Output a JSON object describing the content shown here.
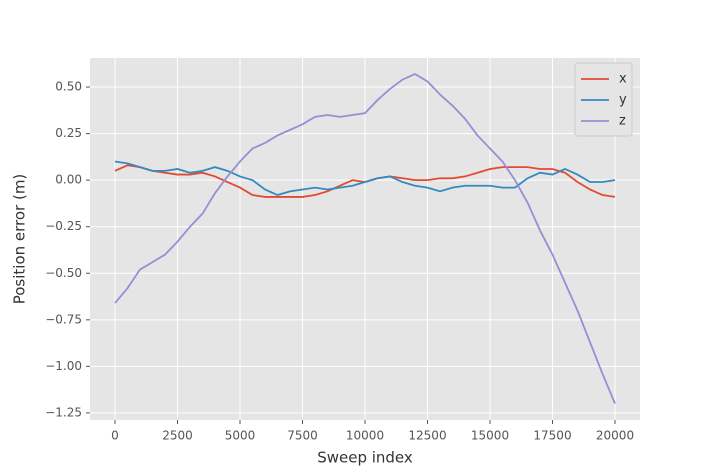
{
  "chart_data": {
    "type": "line",
    "xlabel": "Sweep index",
    "ylabel": "Position error (m)",
    "x": [
      0,
      500,
      1000,
      1500,
      2000,
      2500,
      3000,
      3500,
      4000,
      4500,
      5000,
      5500,
      6000,
      6500,
      7000,
      7500,
      8000,
      8500,
      9000,
      9500,
      10000,
      10500,
      11000,
      11500,
      12000,
      12500,
      13000,
      13500,
      14000,
      14500,
      15000,
      15500,
      16000,
      16500,
      17000,
      17500,
      18000,
      18500,
      19000,
      19500,
      20000
    ],
    "series": [
      {
        "name": "x",
        "color": "#E24A33",
        "values": [
          0.05,
          0.08,
          0.07,
          0.05,
          0.04,
          0.03,
          0.03,
          0.04,
          0.02,
          -0.01,
          -0.04,
          -0.08,
          -0.09,
          -0.09,
          -0.09,
          -0.09,
          -0.08,
          -0.06,
          -0.03,
          0.0,
          -0.01,
          0.01,
          0.02,
          0.01,
          0.0,
          0.0,
          0.01,
          0.01,
          0.02,
          0.04,
          0.06,
          0.07,
          0.07,
          0.07,
          0.06,
          0.06,
          0.04,
          -0.01,
          -0.05,
          -0.08,
          -0.09
        ]
      },
      {
        "name": "y",
        "color": "#348ABD",
        "values": [
          0.1,
          0.09,
          0.07,
          0.05,
          0.05,
          0.06,
          0.04,
          0.05,
          0.07,
          0.05,
          0.02,
          0.0,
          -0.05,
          -0.08,
          -0.06,
          -0.05,
          -0.04,
          -0.05,
          -0.04,
          -0.03,
          -0.01,
          0.01,
          0.02,
          -0.01,
          -0.03,
          -0.04,
          -0.06,
          -0.04,
          -0.03,
          -0.03,
          -0.03,
          -0.04,
          -0.04,
          0.01,
          0.04,
          0.03,
          0.06,
          0.03,
          -0.01,
          -0.01,
          0.0
        ]
      },
      {
        "name": "z",
        "color": "#988ED5",
        "values": [
          -0.66,
          -0.58,
          -0.48,
          -0.44,
          -0.4,
          -0.33,
          -0.25,
          -0.18,
          -0.07,
          0.02,
          0.1,
          0.17,
          0.2,
          0.24,
          0.27,
          0.3,
          0.34,
          0.35,
          0.34,
          0.35,
          0.36,
          0.43,
          0.49,
          0.54,
          0.57,
          0.53,
          0.46,
          0.4,
          0.33,
          0.24,
          0.17,
          0.1,
          0.0,
          -0.12,
          -0.27,
          -0.4,
          -0.55,
          -0.7,
          -0.87,
          -1.04,
          -1.2
        ]
      }
    ],
    "xlim": [
      -1000,
      21000
    ],
    "ylim": [
      -1.288,
      0.656
    ],
    "xticks": [
      0,
      2500,
      5000,
      7500,
      10000,
      12500,
      15000,
      17500,
      20000
    ],
    "yticks": [
      {
        "value": 0.5,
        "label": "0.50"
      },
      {
        "value": 0.25,
        "label": "0.25"
      },
      {
        "value": 0,
        "label": "0.00"
      },
      {
        "value": -0.25,
        "label": "−0.25"
      },
      {
        "value": -0.5,
        "label": "−0.50"
      },
      {
        "value": -0.75,
        "label": "−0.75"
      },
      {
        "value": -1,
        "label": "−1.00"
      },
      {
        "value": -1.25,
        "label": "−1.25"
      }
    ],
    "grid": true,
    "legend": "upper right"
  }
}
